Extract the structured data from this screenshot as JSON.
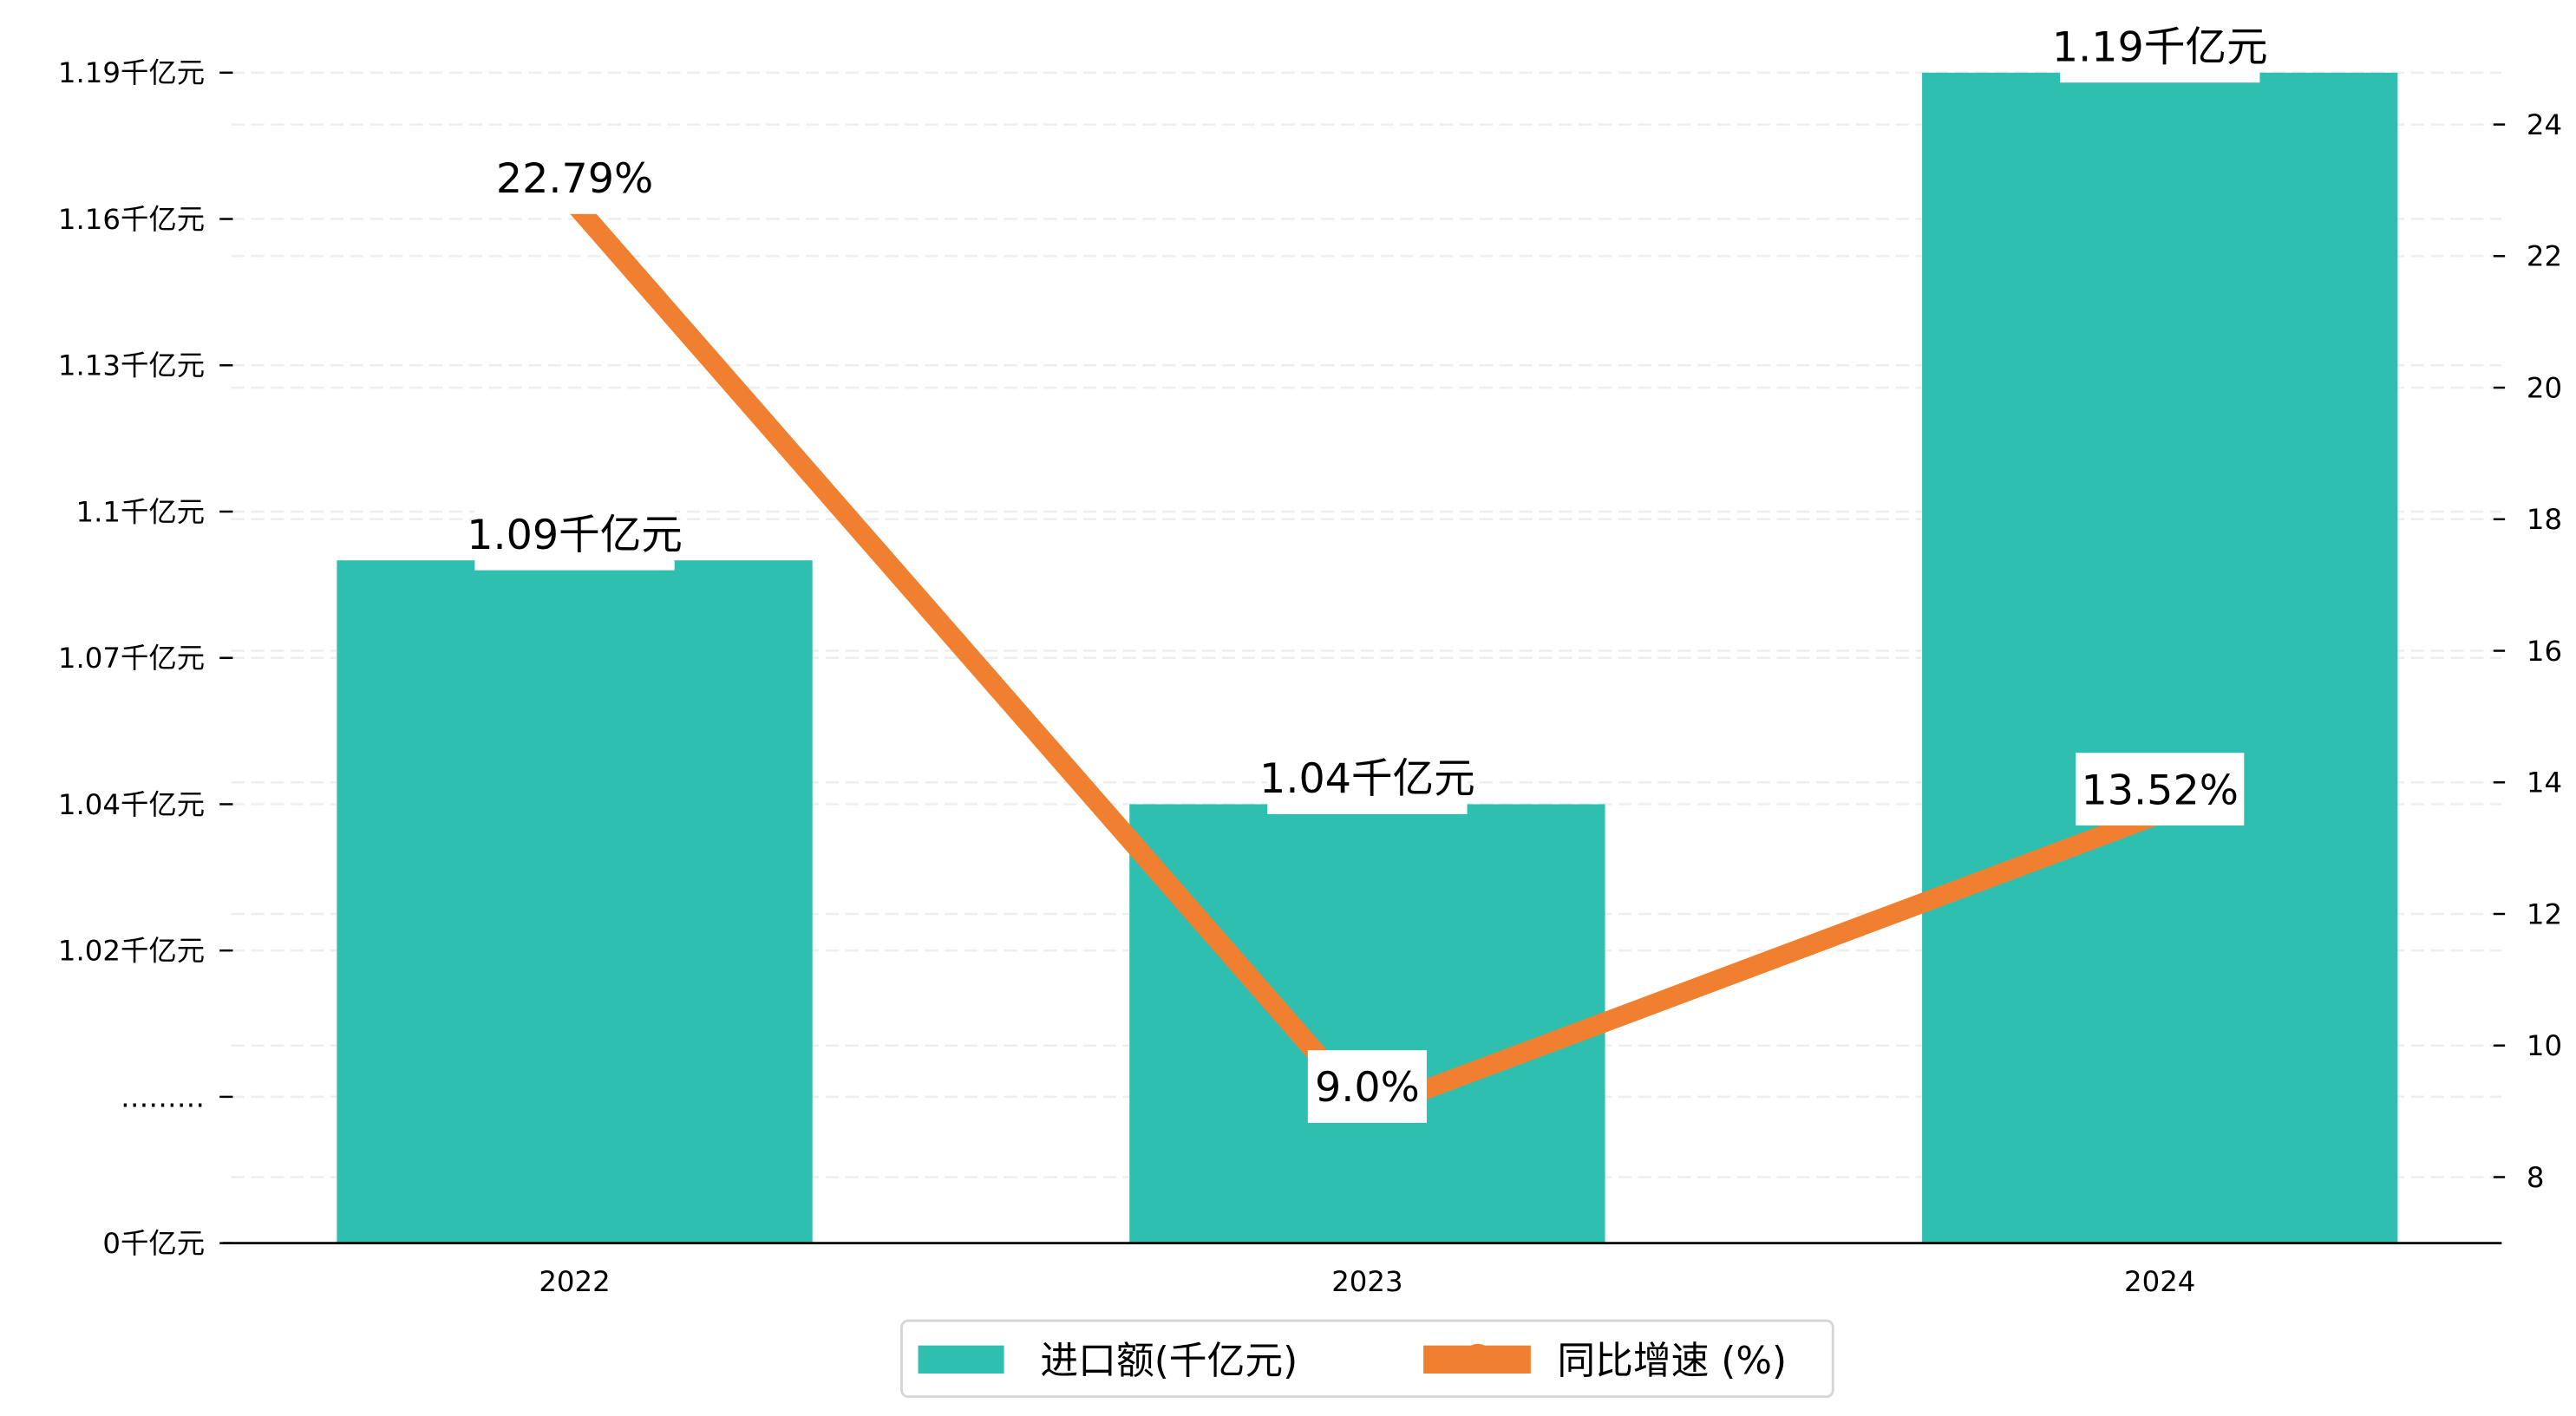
{
  "chart_data": {
    "type": "bar+line",
    "categories": [
      "2022",
      "2023",
      "2024"
    ],
    "series": [
      {
        "name": "进口额(千亿元)",
        "type": "bar",
        "axis": "left",
        "values": [
          1.09,
          1.04,
          1.19
        ],
        "labels": [
          "1.09千亿元",
          "1.04千亿元",
          "1.19千亿元"
        ],
        "color": "#2ebfb0"
      },
      {
        "name": "同比增速 (%)",
        "type": "line",
        "axis": "right",
        "values": [
          22.79,
          9.0,
          13.52
        ],
        "labels": [
          "22.79%",
          "9.0%",
          "13.52%"
        ],
        "color": "#f08030"
      }
    ],
    "left_axis": {
      "tick_labels": [
        "1.19千亿元",
        "1.16千亿元",
        "1.13千亿元",
        "1.1千亿元",
        "1.07千亿元",
        "1.04千亿元",
        "1.02千亿元",
        "………",
        "0千亿元"
      ],
      "tick_values": [
        1.19,
        1.16,
        1.13,
        1.1,
        1.07,
        1.04,
        1.02,
        null,
        0
      ],
      "broken_axis": true
    },
    "right_axis": {
      "tick_labels": [
        "24",
        "22",
        "20",
        "18",
        "16",
        "14",
        "12",
        "10",
        "8"
      ],
      "tick_values": [
        24,
        22,
        20,
        18,
        16,
        14,
        12,
        10,
        8
      ],
      "ylim": [
        7,
        25
      ]
    },
    "grid": "horizontal dashed",
    "legend_placement": "bottom-center",
    "legend": [
      "进口额(千亿元)",
      "同比增速 (%)"
    ]
  }
}
